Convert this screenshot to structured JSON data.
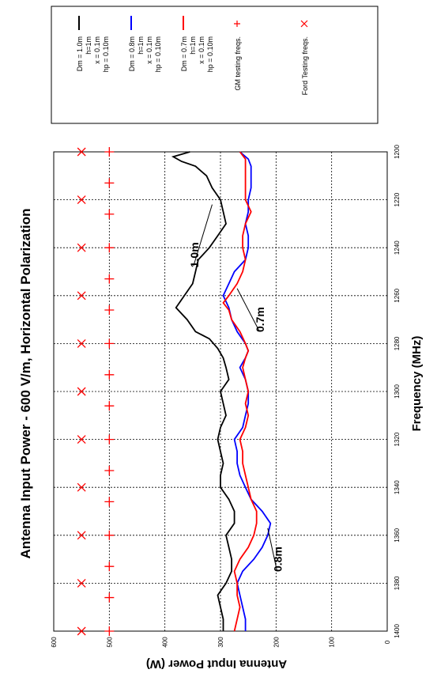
{
  "chart_data": {
    "type": "line",
    "title": "Antenna Input Power - 600 V/m, Horizontal Polarization",
    "xlabel": "Frequency (MHz)",
    "ylabel": "Antenna Input Power (W)",
    "xlim": [
      1200,
      1400
    ],
    "ylim": [
      0,
      600
    ],
    "x_ticks": [
      1200,
      1220,
      1240,
      1260,
      1280,
      1300,
      1320,
      1340,
      1360,
      1380,
      1400
    ],
    "y_ticks": [
      0,
      100,
      200,
      300,
      400,
      500,
      600
    ],
    "grid": true,
    "legend_position": "right",
    "series": [
      {
        "name": "Dm = 1.0m\nh=1m\nx = 0.1m\nhp = 0.10m",
        "color": "#000000",
        "points": [
          [
            1200,
            355
          ],
          [
            1202,
            385
          ],
          [
            1204,
            370
          ],
          [
            1206,
            345
          ],
          [
            1210,
            325
          ],
          [
            1215,
            315
          ],
          [
            1220,
            300
          ],
          [
            1225,
            295
          ],
          [
            1230,
            290
          ],
          [
            1235,
            305
          ],
          [
            1240,
            320
          ],
          [
            1245,
            340
          ],
          [
            1250,
            345
          ],
          [
            1255,
            350
          ],
          [
            1260,
            365
          ],
          [
            1265,
            380
          ],
          [
            1270,
            360
          ],
          [
            1275,
            345
          ],
          [
            1278,
            320
          ],
          [
            1282,
            305
          ],
          [
            1286,
            295
          ],
          [
            1290,
            290
          ],
          [
            1295,
            285
          ],
          [
            1300,
            300
          ],
          [
            1305,
            295
          ],
          [
            1310,
            290
          ],
          [
            1315,
            300
          ],
          [
            1320,
            305
          ],
          [
            1325,
            300
          ],
          [
            1330,
            295
          ],
          [
            1335,
            300
          ],
          [
            1340,
            300
          ],
          [
            1345,
            285
          ],
          [
            1350,
            275
          ],
          [
            1355,
            275
          ],
          [
            1360,
            290
          ],
          [
            1365,
            285
          ],
          [
            1370,
            280
          ],
          [
            1375,
            280
          ],
          [
            1380,
            290
          ],
          [
            1385,
            305
          ],
          [
            1390,
            300
          ],
          [
            1395,
            295
          ],
          [
            1400,
            295
          ]
        ]
      },
      {
        "name": "Dm = 0.8m\nh=1m\nx = 0.1m\nhp = 0.10m",
        "color": "#0000ff",
        "points": [
          [
            1200,
            265
          ],
          [
            1203,
            250
          ],
          [
            1206,
            245
          ],
          [
            1210,
            245
          ],
          [
            1215,
            245
          ],
          [
            1220,
            250
          ],
          [
            1225,
            250
          ],
          [
            1230,
            255
          ],
          [
            1235,
            250
          ],
          [
            1240,
            250
          ],
          [
            1245,
            255
          ],
          [
            1250,
            275
          ],
          [
            1255,
            285
          ],
          [
            1260,
            295
          ],
          [
            1265,
            285
          ],
          [
            1270,
            280
          ],
          [
            1275,
            270
          ],
          [
            1280,
            255
          ],
          [
            1283,
            250
          ],
          [
            1286,
            255
          ],
          [
            1290,
            265
          ],
          [
            1295,
            255
          ],
          [
            1300,
            250
          ],
          [
            1305,
            250
          ],
          [
            1310,
            255
          ],
          [
            1315,
            260
          ],
          [
            1320,
            275
          ],
          [
            1325,
            270
          ],
          [
            1330,
            270
          ],
          [
            1335,
            265
          ],
          [
            1340,
            255
          ],
          [
            1345,
            245
          ],
          [
            1350,
            225
          ],
          [
            1355,
            210
          ],
          [
            1360,
            215
          ],
          [
            1365,
            225
          ],
          [
            1370,
            240
          ],
          [
            1375,
            260
          ],
          [
            1380,
            270
          ],
          [
            1385,
            265
          ],
          [
            1390,
            260
          ],
          [
            1395,
            255
          ],
          [
            1400,
            255
          ]
        ]
      },
      {
        "name": "Dm = 0.7m\nh=1m\nx = 0.1m\nhp = 0.10m",
        "color": "#ff0000",
        "points": [
          [
            1200,
            265
          ],
          [
            1203,
            255
          ],
          [
            1206,
            255
          ],
          [
            1210,
            255
          ],
          [
            1215,
            255
          ],
          [
            1220,
            255
          ],
          [
            1225,
            245
          ],
          [
            1230,
            255
          ],
          [
            1235,
            260
          ],
          [
            1240,
            260
          ],
          [
            1245,
            255
          ],
          [
            1250,
            260
          ],
          [
            1255,
            270
          ],
          [
            1260,
            285
          ],
          [
            1263,
            295
          ],
          [
            1266,
            285
          ],
          [
            1270,
            280
          ],
          [
            1275,
            265
          ],
          [
            1280,
            255
          ],
          [
            1283,
            250
          ],
          [
            1286,
            255
          ],
          [
            1290,
            260
          ],
          [
            1295,
            255
          ],
          [
            1300,
            250
          ],
          [
            1305,
            255
          ],
          [
            1310,
            250
          ],
          [
            1315,
            255
          ],
          [
            1320,
            265
          ],
          [
            1325,
            260
          ],
          [
            1330,
            260
          ],
          [
            1335,
            255
          ],
          [
            1340,
            250
          ],
          [
            1345,
            245
          ],
          [
            1350,
            235
          ],
          [
            1355,
            235
          ],
          [
            1360,
            240
          ],
          [
            1365,
            250
          ],
          [
            1370,
            265
          ],
          [
            1375,
            275
          ],
          [
            1380,
            270
          ],
          [
            1385,
            270
          ],
          [
            1390,
            265
          ],
          [
            1395,
            270
          ],
          [
            1400,
            275
          ]
        ]
      },
      {
        "name": "GM testing freqs.",
        "color": "#ff0000",
        "marker": "+",
        "x": [
          1200,
          1213,
          1226,
          1240,
          1253,
          1266,
          1280,
          1293,
          1306,
          1320,
          1333,
          1346,
          1360,
          1373,
          1386,
          1400
        ],
        "y": 500
      },
      {
        "name": "Ford Testing freqs.",
        "color": "#ff0000",
        "marker": "x",
        "x": [
          1200,
          1220,
          1240,
          1260,
          1280,
          1300,
          1320,
          1340,
          1360,
          1380,
          1400
        ],
        "y": 550
      }
    ],
    "annotations": [
      {
        "text": "1.0m",
        "x": 1243,
        "y": 340,
        "arrow_to": [
          1222,
          315
        ]
      },
      {
        "text": "0.7m",
        "x": 1270,
        "y": 222,
        "arrow_to": [
          1257,
          270
        ]
      },
      {
        "text": "0.8m",
        "x": 1370,
        "y": 190,
        "arrow_to": [
          1357,
          215
        ]
      }
    ]
  }
}
